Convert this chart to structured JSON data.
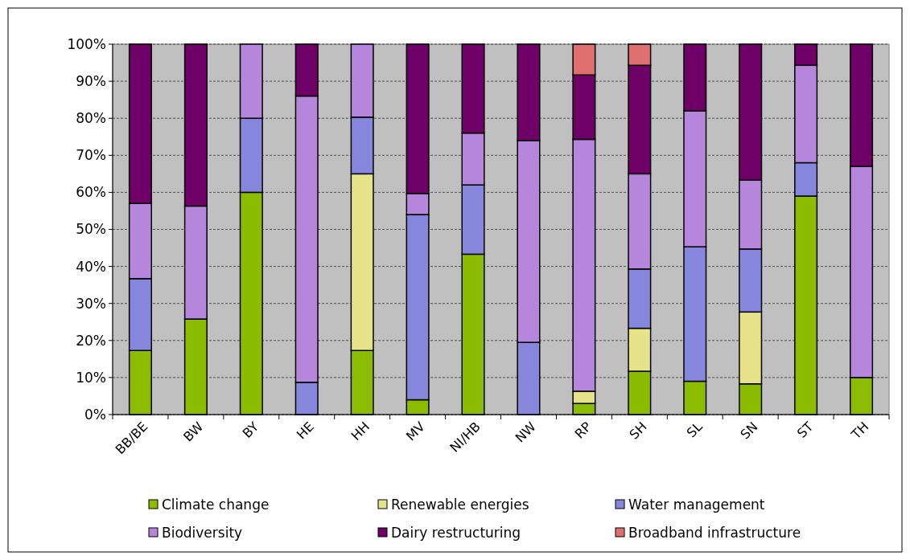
{
  "chart_data": {
    "type": "bar",
    "stacked": true,
    "categories": [
      "BB/BE",
      "BW",
      "BY",
      "HE",
      "HH",
      "MV",
      "NI/HB",
      "NW",
      "RP",
      "SH",
      "SL",
      "SN",
      "ST",
      "TH"
    ],
    "series": [
      {
        "name": "Climate change",
        "color": "#8cbc00",
        "values": [
          17.3,
          25.8,
          60,
          0,
          17.3,
          4,
          43.3,
          0,
          3,
          11.7,
          9,
          8.3,
          59,
          10
        ]
      },
      {
        "name": "Renewable energies",
        "color": "#e6e38a",
        "values": [
          0,
          0,
          0,
          0,
          47.7,
          0,
          0,
          0,
          3.3,
          11.6,
          0,
          19.4,
          0,
          0
        ]
      },
      {
        "name": "Water management",
        "color": "#8686dc",
        "values": [
          19.4,
          0,
          20,
          8.7,
          15.3,
          50,
          18.7,
          19.5,
          0,
          16,
          36.3,
          17,
          9,
          0
        ]
      },
      {
        "name": "Biodiversity",
        "color": "#b685dc",
        "values": [
          20.3,
          30.5,
          20,
          77.3,
          19.7,
          5.7,
          14,
          54.5,
          68,
          25.7,
          36.7,
          18.6,
          26.3,
          57
        ]
      },
      {
        "name": "Dairy restructuring",
        "color": "#6e0068",
        "values": [
          43,
          43.7,
          0,
          14,
          0,
          40.3,
          24,
          26,
          17.4,
          29.3,
          18,
          36.7,
          5.7,
          33
        ]
      },
      {
        "name": "Broadband infrastructure",
        "color": "#e07070",
        "values": [
          0,
          0,
          0,
          0,
          0,
          0,
          0,
          0,
          8.3,
          5.7,
          0,
          0,
          0,
          0
        ]
      }
    ],
    "ylim": [
      0,
      100
    ],
    "yticks": [
      {
        "value": 0,
        "label": "0%"
      },
      {
        "value": 10,
        "label": "10%"
      },
      {
        "value": 20,
        "label": "20%"
      },
      {
        "value": 30,
        "label": "30%"
      },
      {
        "value": 40,
        "label": "40%"
      },
      {
        "value": 50,
        "label": "50%"
      },
      {
        "value": 60,
        "label": "60%"
      },
      {
        "value": 70,
        "label": "70%"
      },
      {
        "value": 80,
        "label": "80%"
      },
      {
        "value": 90,
        "label": "90%"
      },
      {
        "value": 100,
        "label": "100%"
      }
    ],
    "grid": "y",
    "legend": "bottom"
  }
}
